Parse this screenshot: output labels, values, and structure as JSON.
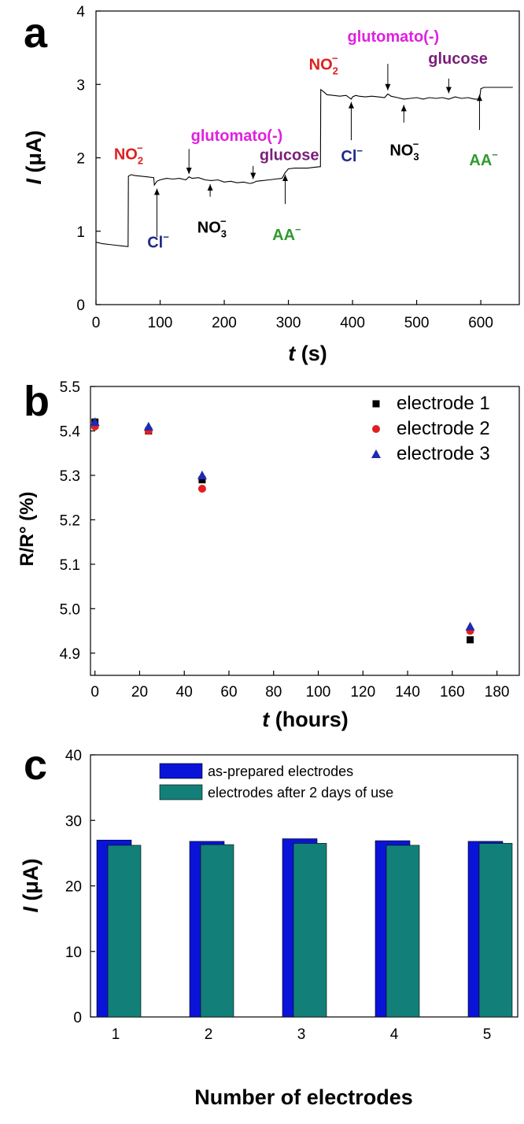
{
  "colors": {
    "axis": "#000000",
    "red": "#e02020",
    "magenta": "#e020e0",
    "purple": "#7a1f7a",
    "navy": "#1f2a8a",
    "green": "#2e9a2e",
    "electrode1": "#000000",
    "electrode2": "#e02020",
    "electrode3": "#1f2ab0",
    "bar_asprepared": "#0a14d8",
    "bar_afteruse": "#128078"
  },
  "chart_data": [
    {
      "panel": "a",
      "type": "line",
      "xlabel_italic": "t",
      "xlabel_rest": " (s)",
      "ylabel_italic": "I",
      "ylabel_rest": " (μA)",
      "xlim": [
        0,
        660
      ],
      "ylim": [
        0,
        4
      ],
      "xticks": [
        0,
        100,
        200,
        300,
        400,
        500,
        600
      ],
      "yticks": [
        0,
        1,
        2,
        3,
        4
      ],
      "x": [
        0,
        10,
        20,
        30,
        40,
        50,
        50.5,
        55,
        60,
        70,
        80,
        90,
        91,
        95,
        100,
        110,
        120,
        130,
        140,
        145,
        150,
        160,
        170,
        180,
        190,
        200,
        210,
        220,
        230,
        240,
        245,
        250,
        260,
        270,
        280,
        290,
        295,
        300,
        310,
        320,
        330,
        340,
        350,
        350.5,
        355,
        360,
        370,
        380,
        390,
        398,
        400,
        405,
        410,
        420,
        430,
        440,
        450,
        455,
        460,
        470,
        480,
        490,
        500,
        510,
        520,
        530,
        540,
        550,
        560,
        570,
        580,
        590,
        598,
        600,
        605,
        610,
        620,
        630,
        640,
        650
      ],
      "y": [
        0.85,
        0.83,
        0.82,
        0.81,
        0.8,
        0.79,
        1.75,
        1.77,
        1.76,
        1.75,
        1.74,
        1.73,
        1.63,
        1.68,
        1.7,
        1.72,
        1.71,
        1.72,
        1.7,
        1.74,
        1.72,
        1.73,
        1.7,
        1.69,
        1.7,
        1.67,
        1.68,
        1.66,
        1.67,
        1.65,
        1.66,
        1.68,
        1.69,
        1.7,
        1.71,
        1.72,
        1.8,
        1.85,
        1.86,
        1.86,
        1.86,
        1.87,
        1.88,
        2.93,
        2.9,
        2.86,
        2.85,
        2.84,
        2.85,
        2.8,
        2.83,
        2.85,
        2.84,
        2.83,
        2.84,
        2.83,
        2.82,
        2.87,
        2.84,
        2.82,
        2.8,
        2.81,
        2.82,
        2.8,
        2.82,
        2.81,
        2.82,
        2.8,
        2.83,
        2.81,
        2.82,
        2.8,
        2.8,
        2.94,
        2.96,
        2.96,
        2.96,
        2.96,
        2.96,
        2.96
      ],
      "annotations": [
        {
          "id": "no2-1",
          "label": "NO",
          "sub": "2",
          "sup": "−",
          "color": "red",
          "x": 28,
          "y": 1.98
        },
        {
          "id": "cl-1",
          "label": "Cl",
          "sup": "−",
          "color": "navy",
          "x": 80,
          "y": 0.78,
          "arrow_from": 0.92,
          "arrow_to": 1.58,
          "arrow_x": 95
        },
        {
          "id": "glut-1",
          "label": "glutomato(-)",
          "color": "magenta",
          "x": 148,
          "y": 2.23,
          "arrow_from": 2.12,
          "arrow_to": 1.78,
          "arrow_x": 145
        },
        {
          "id": "no3-1",
          "label": "NO",
          "sub": "3",
          "sup": "−",
          "color": "axis",
          "x": 158,
          "y": 0.98,
          "arrow_from": 1.47,
          "arrow_to": 1.64,
          "arrow_x": 178
        },
        {
          "id": "gluc-1",
          "label": "glucose",
          "color": "purple",
          "x": 255,
          "y": 1.97,
          "arrow_from": 1.89,
          "arrow_to": 1.71,
          "arrow_x": 245
        },
        {
          "id": "aa-1",
          "label": "AA",
          "sup": "−",
          "color": "green",
          "x": 275,
          "y": 0.88,
          "arrow_from": 1.37,
          "arrow_to": 1.77,
          "arrow_x": 295
        },
        {
          "id": "no2-2",
          "label": "NO",
          "sub": "2",
          "sup": "−",
          "color": "red",
          "x": 332,
          "y": 3.2
        },
        {
          "id": "cl-2",
          "label": "Cl",
          "sup": "−",
          "color": "navy",
          "x": 382,
          "y": 1.95,
          "arrow_from": 2.24,
          "arrow_to": 2.76,
          "arrow_x": 398
        },
        {
          "id": "glut-2",
          "label": "glutomato(-)",
          "color": "magenta",
          "x": 392,
          "y": 3.58,
          "arrow_from": 3.28,
          "arrow_to": 2.92,
          "arrow_x": 455
        },
        {
          "id": "no3-2",
          "label": "NO",
          "sub": "3",
          "sup": "−",
          "color": "axis",
          "x": 458,
          "y": 2.03,
          "arrow_from": 2.48,
          "arrow_to": 2.72,
          "arrow_x": 480
        },
        {
          "id": "gluc-2",
          "label": "glucose",
          "color": "purple",
          "x": 518,
          "y": 3.28,
          "arrow_from": 3.08,
          "arrow_to": 2.88,
          "arrow_x": 550
        },
        {
          "id": "aa-2",
          "label": "AA",
          "sup": "−",
          "color": "green",
          "x": 582,
          "y": 1.9,
          "arrow_from": 2.38,
          "arrow_to": 2.86,
          "arrow_x": 598
        }
      ]
    },
    {
      "panel": "b",
      "type": "scatter",
      "xlabel_italic": "t",
      "xlabel_rest": " (hours)",
      "ylabel": "R/R° (%)",
      "xlim": [
        -2,
        190
      ],
      "ylim": [
        4.85,
        5.5
      ],
      "xticks": [
        0,
        20,
        40,
        60,
        80,
        100,
        120,
        140,
        160,
        180
      ],
      "yticks": [
        "4.9",
        "5.0",
        "5.1",
        "5.2",
        "5.3",
        "5.4",
        "5.5"
      ],
      "legend_position": "top-right",
      "series": [
        {
          "name": "electrode 1",
          "marker": "square",
          "color": "electrode1",
          "x": [
            0,
            24,
            48,
            168
          ],
          "y": [
            5.42,
            5.4,
            5.29,
            4.93
          ]
        },
        {
          "name": "electrode 2",
          "marker": "circle",
          "color": "electrode2",
          "x": [
            0,
            24,
            48,
            168
          ],
          "y": [
            5.41,
            5.4,
            5.27,
            4.95
          ]
        },
        {
          "name": "electrode 3",
          "marker": "triangle",
          "color": "electrode3",
          "x": [
            0,
            24,
            48,
            168
          ],
          "y": [
            5.42,
            5.41,
            5.3,
            4.96
          ]
        }
      ]
    },
    {
      "panel": "c",
      "type": "bar",
      "xlabel": "Number of electrodes",
      "ylabel_italic": "I",
      "ylabel_rest": " (μA)",
      "categories": [
        "1",
        "2",
        "3",
        "4",
        "5"
      ],
      "ylim": [
        0,
        40
      ],
      "yticks": [
        0,
        10,
        20,
        30,
        40
      ],
      "legend_position": "top-center",
      "series": [
        {
          "name": "as-prepared electrodes",
          "color": "bar_asprepared",
          "values": [
            27.0,
            26.8,
            27.2,
            26.9,
            26.8
          ]
        },
        {
          "name": "electrodes after 2 days of use",
          "color": "bar_afteruse",
          "values": [
            26.2,
            26.3,
            26.5,
            26.2,
            26.5
          ]
        }
      ]
    }
  ]
}
